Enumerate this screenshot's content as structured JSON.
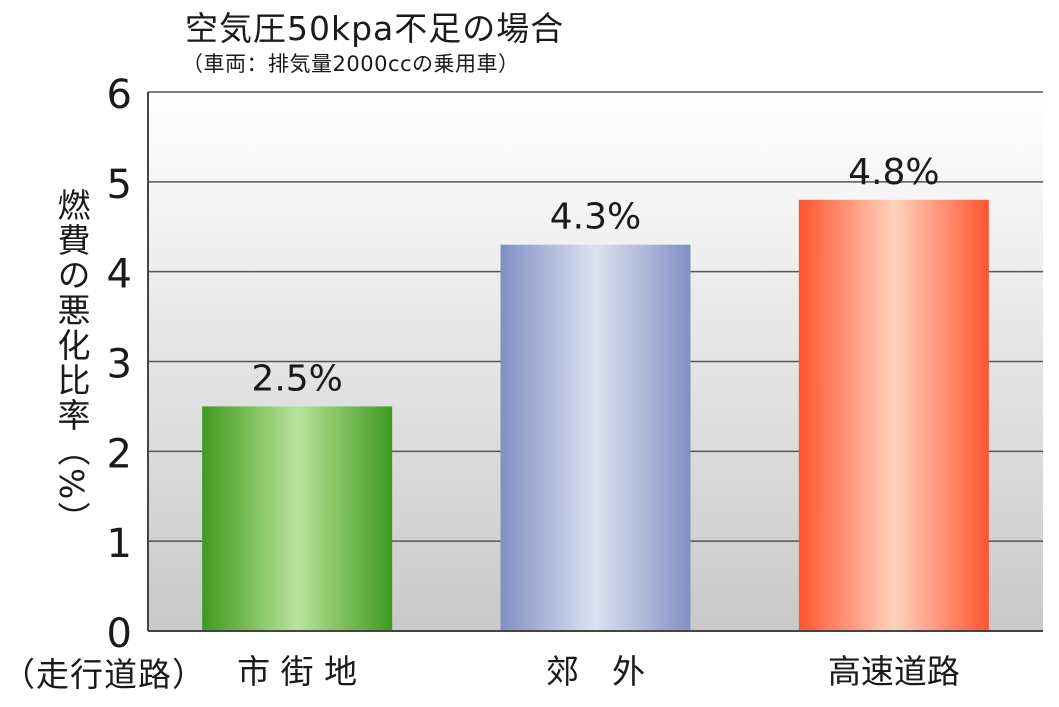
{
  "chart_data": {
    "type": "bar",
    "title": "空気圧50kpa不足の場合",
    "subtitle": "（車両：排気量2000ccの乗用車）",
    "ylabel": "燃費の悪化比率（%）",
    "xlabel_prefix": "（走行道路）",
    "categories": [
      "市 街 地",
      "郊　外",
      "高速道路"
    ],
    "values": [
      2.5,
      4.3,
      4.8
    ],
    "data_labels": [
      "2.5%",
      "4.3%",
      "4.8%"
    ],
    "ylim": [
      0,
      6
    ],
    "yticks": [
      "0",
      "1",
      "2",
      "3",
      "4",
      "5",
      "6"
    ],
    "grid": true,
    "legend": "none",
    "bar_colors": [
      {
        "edge": "#3f9a1e",
        "center": "#b8e39a"
      },
      {
        "edge": "#8090c4",
        "center": "#dde2f1"
      },
      {
        "edge": "#ff5430",
        "center": "#ffd2bd"
      }
    ]
  }
}
